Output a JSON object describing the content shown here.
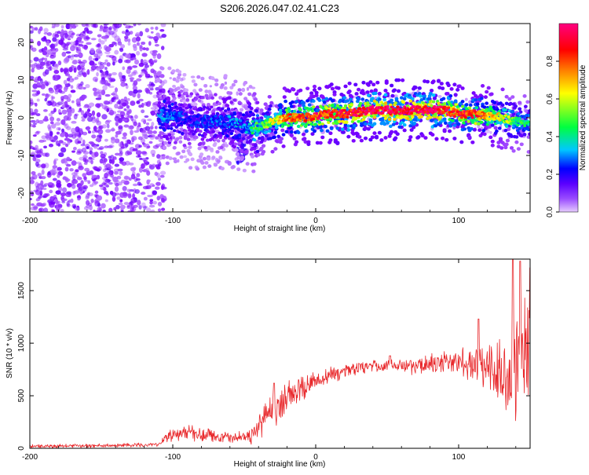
{
  "title": "S206.2026.047.02.41.C23",
  "chart_data": [
    {
      "type": "heatmap",
      "xlabel": "Height of straight line (km)",
      "ylabel": "Frequency (Hz)",
      "xlim": [
        -200,
        150
      ],
      "ylim": [
        -25,
        25
      ],
      "x_ticks": [
        -200,
        -100,
        0,
        100
      ],
      "x_tick_labels": [
        "-200",
        "-100",
        "0",
        "100"
      ],
      "y_ticks": [
        -20,
        -10,
        0,
        10,
        20
      ],
      "y_tick_labels": [
        "-20",
        "-10",
        "0",
        "10",
        "20"
      ],
      "colorbar": {
        "label": "Normalized spectral amplitude",
        "range": [
          0,
          1
        ],
        "ticks": [
          0.0,
          0.2,
          0.4,
          0.6,
          0.8
        ],
        "tick_labels": [
          "0.0",
          "0.2",
          "0.4",
          "0.6",
          "0.8"
        ],
        "colormap": [
          "#e6ccff",
          "#7a00ff",
          "#0000ff",
          "#00c8ff",
          "#00ff40",
          "#ffff00",
          "#ff8000",
          "#ff0000",
          "#ff0080"
        ]
      },
      "ridge": {
        "x": [
          -110,
          -100,
          -90,
          -80,
          -70,
          -60,
          -50,
          -40,
          -30,
          -20,
          -10,
          0,
          10,
          20,
          30,
          40,
          50,
          60,
          70,
          80,
          90,
          100,
          110,
          120,
          130,
          140,
          150
        ],
        "freq": [
          0.5,
          0.5,
          -0.5,
          -1.0,
          -1.0,
          -1.0,
          -2.5,
          -2.5,
          -1.0,
          0.0,
          0.0,
          0.5,
          1.0,
          1.0,
          1.5,
          2.0,
          2.0,
          2.0,
          2.0,
          2.0,
          2.0,
          1.0,
          1.0,
          0.5,
          0.0,
          -1.0,
          -1.5
        ],
        "amplitude": [
          0.3,
          0.3,
          0.2,
          0.25,
          0.25,
          0.3,
          0.3,
          0.45,
          0.6,
          0.75,
          0.8,
          0.85,
          0.85,
          0.9,
          0.9,
          0.95,
          0.95,
          0.95,
          0.95,
          0.95,
          0.9,
          0.85,
          0.85,
          0.75,
          0.6,
          0.5,
          0.45
        ]
      },
      "noise_region": {
        "x": [
          -200,
          -112
        ],
        "freq": [
          -25,
          25
        ],
        "amplitude": [
          0.05,
          0.15
        ]
      },
      "secondary_feature": {
        "x": [
          -55,
          -48
        ],
        "freq": [
          -12,
          -3
        ],
        "amplitude": 0.2
      }
    },
    {
      "type": "line",
      "xlabel": "Height of straight line (km)",
      "ylabel": "SNR (10 * v/v)",
      "xlim": [
        -200,
        150
      ],
      "ylim": [
        0,
        1800
      ],
      "x_ticks": [
        -200,
        -100,
        0,
        100
      ],
      "x_tick_labels": [
        "-200",
        "-100",
        "0",
        "100"
      ],
      "y_ticks": [
        0,
        500,
        1000,
        1500
      ],
      "y_tick_labels": [
        "0",
        "500",
        "1000",
        "1500"
      ],
      "color": "#e8272a",
      "series": [
        {
          "name": "SNR",
          "x": [
            -200,
            -150,
            -110,
            -105,
            -100,
            -90,
            -80,
            -70,
            -60,
            -55,
            -50,
            -45,
            -40,
            -35,
            -30,
            -25,
            -20,
            -10,
            0,
            10,
            20,
            30,
            40,
            50,
            60,
            70,
            80,
            90,
            100,
            110,
            120,
            130,
            135,
            140,
            145,
            150
          ],
          "mean": [
            20,
            25,
            35,
            110,
            130,
            150,
            130,
            110,
            100,
            110,
            100,
            120,
            200,
            300,
            380,
            450,
            500,
            570,
            620,
            680,
            730,
            760,
            780,
            790,
            780,
            780,
            800,
            820,
            830,
            800,
            760,
            680,
            600,
            750,
            900,
            1000
          ],
          "spread": [
            20,
            20,
            25,
            60,
            80,
            80,
            80,
            70,
            60,
            60,
            60,
            100,
            150,
            200,
            220,
            200,
            200,
            150,
            120,
            100,
            80,
            70,
            70,
            70,
            80,
            90,
            110,
            130,
            160,
            200,
            280,
            380,
            450,
            600,
            700,
            700
          ],
          "peaks": [
            {
              "x": -29,
              "y": 620
            },
            {
              "x": 52,
              "y": 880
            },
            {
              "x": 114,
              "y": 1230
            },
            {
              "x": 138,
              "y": 1800
            },
            {
              "x": 143,
              "y": 1780
            },
            {
              "x": 150,
              "y": 1720
            }
          ]
        }
      ]
    }
  ]
}
